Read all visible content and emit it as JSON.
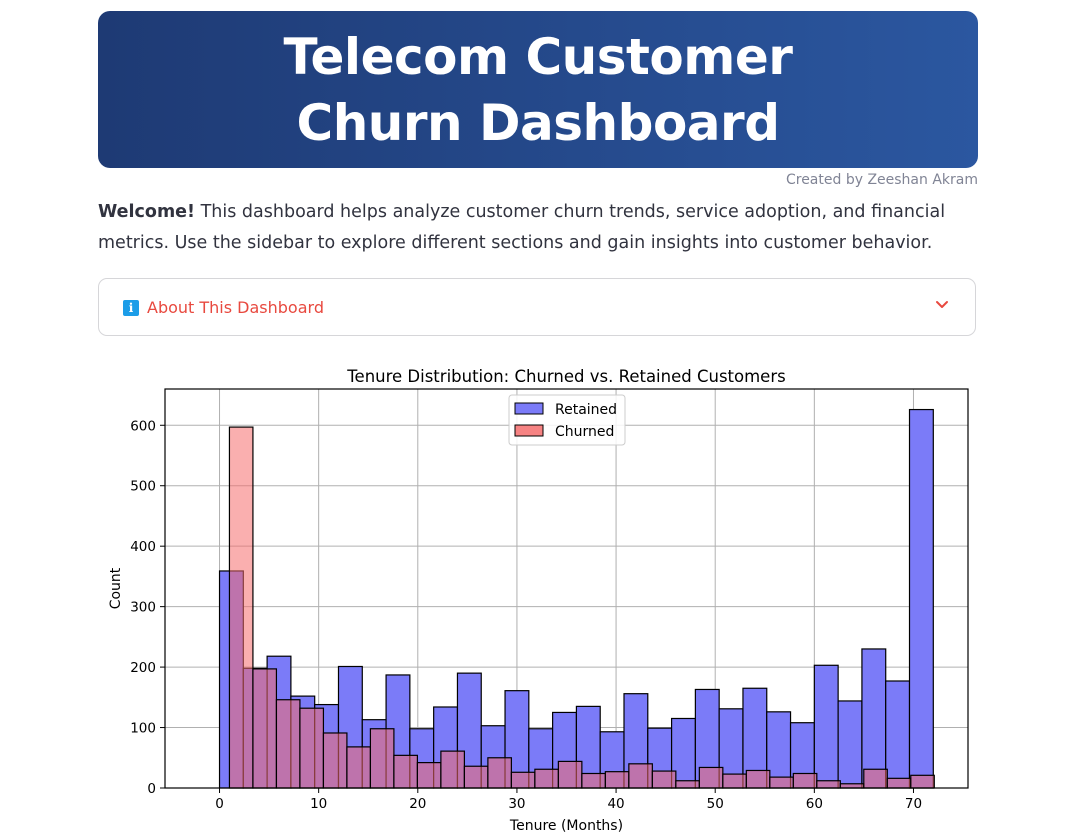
{
  "header": {
    "title": "Telecom Customer Churn Dashboard",
    "credit": "Created by Zeeshan Akram"
  },
  "intro": {
    "bold": "Welcome!",
    "text": " This dashboard helps analyze customer churn trends, service adoption, and financial metrics. Use the sidebar to explore different sections and gain insights into customer behavior."
  },
  "expander": {
    "label": "About This Dashboard",
    "icon": "info-icon",
    "state": "collapsed"
  },
  "colors": {
    "header_start": "#1e3a74",
    "header_end": "#2b57a0",
    "retained": "#7b7bf8",
    "churned": "#f56d6d",
    "overlap": "#b9306a",
    "expander_text": "#e8493f"
  },
  "chart_data": {
    "type": "bar",
    "title": "Tenure Distribution: Churned vs. Retained Customers",
    "xlabel": "Tenure (Months)",
    "ylabel": "Count",
    "xlim": [
      -5.5,
      75.5
    ],
    "ylim": [
      0,
      660
    ],
    "xticks": [
      0,
      10,
      20,
      30,
      40,
      50,
      60,
      70
    ],
    "yticks": [
      0,
      100,
      200,
      300,
      400,
      500,
      600
    ],
    "grid": true,
    "legend": "top-center",
    "series": [
      {
        "name": "Retained",
        "color": "#7b7bf8",
        "bin_start": 0,
        "bin_width": 2.4,
        "values": [
          359,
          198,
          218,
          152,
          138,
          201,
          113,
          187,
          98,
          134,
          190,
          103,
          161,
          98,
          125,
          135,
          93,
          156,
          99,
          115,
          163,
          131,
          165,
          126,
          108,
          203,
          144,
          230,
          177,
          626
        ]
      },
      {
        "name": "Churned",
        "color": "#f56d6d",
        "bin_start": 1,
        "bin_width": 2.37,
        "values": [
          597,
          197,
          146,
          132,
          91,
          68,
          98,
          54,
          42,
          61,
          36,
          50,
          26,
          31,
          44,
          24,
          27,
          40,
          28,
          12,
          34,
          23,
          29,
          18,
          24,
          12,
          7,
          31,
          16,
          21
        ]
      }
    ]
  }
}
